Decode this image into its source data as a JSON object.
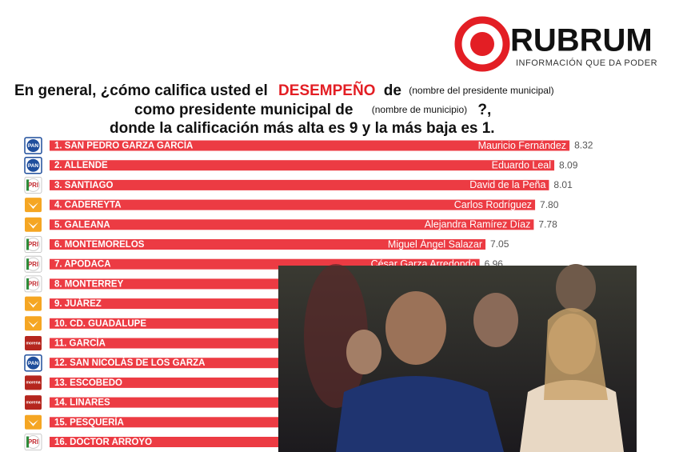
{
  "brand": {
    "name": "RUBRUM",
    "tagline": "INFORMACIÓN QUE DA PODER"
  },
  "chart_data": {
    "type": "bar",
    "title": {
      "l1a": "En general, ¿cómo califica usted el",
      "l1b": "DESEMPEÑO",
      "l1c": "de",
      "l1d": "(nombre del presidente municipal)",
      "l2a": "como presidente municipal de",
      "l2b": "(nombre de municipio)",
      "l2c": "?,",
      "l3": "donde la calificación más alta es 9 y la más baja es 1."
    },
    "categories": [
      "1. SAN PEDRO GARZA GARCÍA",
      "2. ALLENDE",
      "3. SANTIAGO",
      "4. CADEREYTA",
      "5. GALEANA",
      "6. MONTEMORELOS",
      "7. APODACA",
      "8. MONTERREY",
      "9. JUÁREZ",
      "10. CD. GUADALUPE",
      "11. GARCÍA",
      "12. SAN NICOLÁS DE LOS GARZA",
      "13. ESCOBEDO",
      "14. LINARES",
      "15. PESQUERÍA",
      "16. DOCTOR ARROYO"
    ],
    "candidates": [
      "Mauricio Fernández",
      "Eduardo Leal",
      "David de la Peña",
      "Carlos Rodríguez",
      "Alejandra Ramírez Díaz",
      "Miguel Ángel Salazar",
      "César Garza Arredondo",
      null,
      null,
      null,
      null,
      null,
      null,
      null,
      null,
      null
    ],
    "parties": [
      "PAN",
      "PAN",
      "PRI",
      "MC",
      "MC",
      "PRI",
      "PRI",
      "PRI",
      "MC",
      "MC",
      "morena",
      "PAN",
      "morena",
      "morena",
      "MC",
      "PRI"
    ],
    "values": [
      8.32,
      8.09,
      8.01,
      7.8,
      7.78,
      7.05,
      6.96,
      null,
      null,
      null,
      null,
      null,
      null,
      null,
      null,
      null
    ],
    "value_labels": [
      "8.32",
      "8.09",
      "8.01",
      "7.80",
      "7.78",
      "7.05",
      "6.96",
      null,
      null,
      null,
      null,
      null,
      null,
      null,
      null,
      null
    ],
    "color": "#ec3b43"
  }
}
